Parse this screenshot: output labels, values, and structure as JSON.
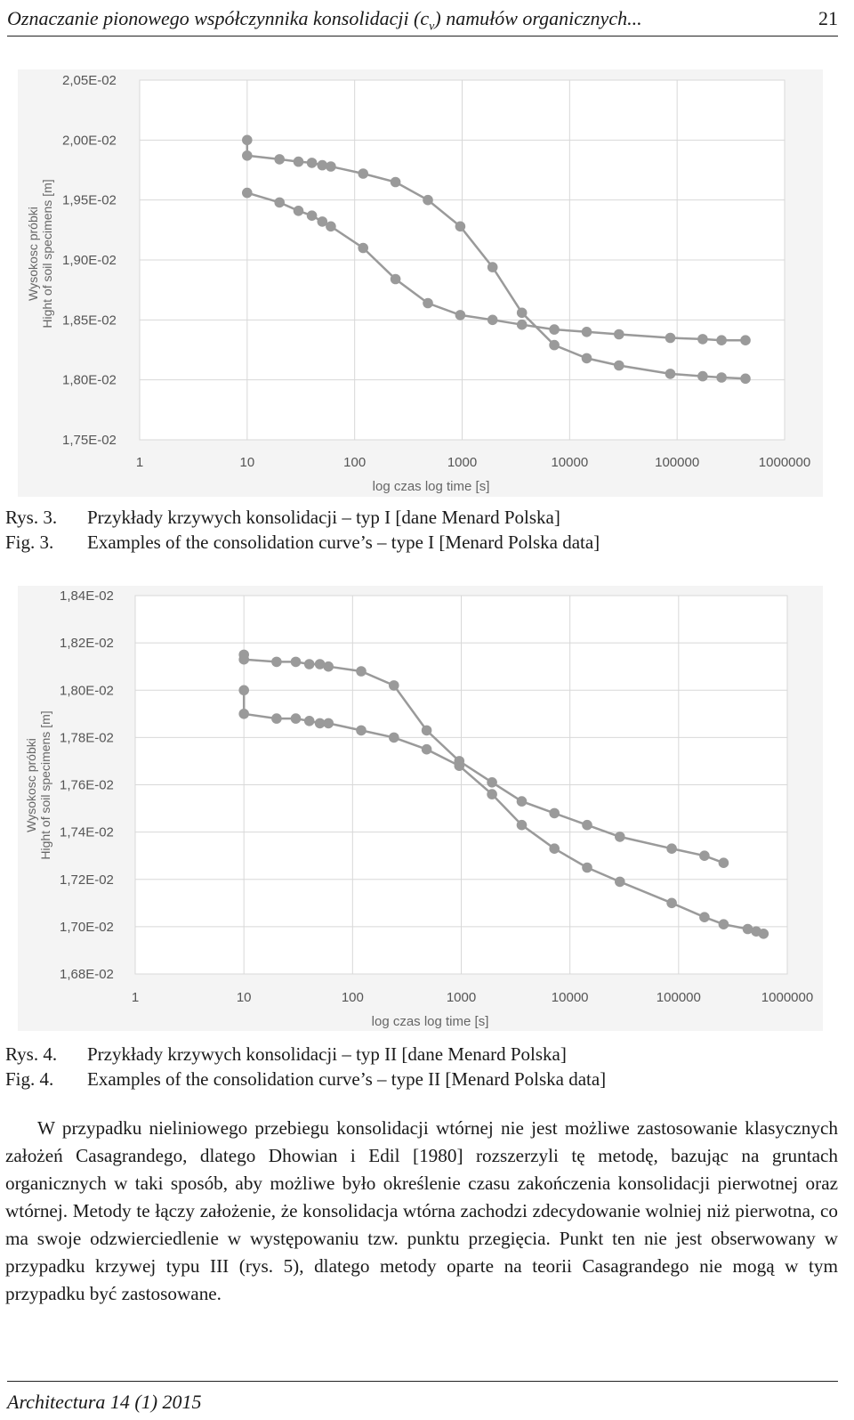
{
  "header": {
    "title": "Oznaczanie pionowego współczynnika konsolidacji (c",
    "title_sub": "v",
    "title_end": ") namułów organicznych...",
    "page_number": "21"
  },
  "figures": [
    {
      "caption": {
        "rys_label": "Rys. 3.",
        "rys_text": "Przykłady krzywych konsolidacji – typ I [dane Menard Polska]",
        "fig_label": "Fig. 3.",
        "fig_text": "Examples of the consolidation curve’s – type I [Menard Polska data]"
      }
    },
    {
      "caption": {
        "rys_label": "Rys. 4.",
        "rys_text": "Przykłady krzywych konsolidacji – typ II [dane Menard Polska]",
        "fig_label": "Fig. 4.",
        "fig_text": "Examples of the consolidation curve’s – type II [Menard Polska data]"
      }
    }
  ],
  "chart_data": [
    {
      "type": "scatter",
      "xscale": "log",
      "xlim": [
        1,
        1000000
      ],
      "ylim": [
        0.0175,
        0.0205
      ],
      "x_ticks": [
        "1",
        "10",
        "100",
        "1000",
        "10000",
        "100000",
        "1000000"
      ],
      "y_ticks": [
        "1,75E-02",
        "1,80E-02",
        "1,85E-02",
        "1,90E-02",
        "1,95E-02",
        "2,00E-02",
        "2,05E-02"
      ],
      "xlabel": "log czas log time [s]",
      "ylabel_line1": "Wysokosc próbki",
      "ylabel_line2": "Hight of  soil specimens [m]",
      "grid": true,
      "marker_color": "#9a9a9a",
      "series": [
        {
          "x": [
            10,
            10,
            20,
            30,
            40,
            50,
            60,
            120,
            240,
            480,
            960,
            1920,
            3600,
            7200,
            14400,
            28800,
            86400,
            172800,
            259200,
            432000
          ],
          "y": [
            0.02,
            0.01987,
            0.01984,
            0.01982,
            0.01981,
            0.01979,
            0.01978,
            0.01972,
            0.01965,
            0.0195,
            0.01928,
            0.01894,
            0.01856,
            0.01829,
            0.01818,
            0.01812,
            0.01805,
            0.01803,
            0.01802,
            0.01801
          ]
        },
        {
          "x": [
            10,
            20,
            30,
            40,
            50,
            60,
            120,
            240,
            480,
            960,
            1920,
            3600,
            7200,
            14400,
            28800,
            86400,
            172800,
            259200,
            432000
          ],
          "y": [
            0.01956,
            0.01948,
            0.01941,
            0.01937,
            0.01932,
            0.01928,
            0.0191,
            0.01884,
            0.01864,
            0.01854,
            0.0185,
            0.01846,
            0.01842,
            0.0184,
            0.01838,
            0.01835,
            0.01834,
            0.01833,
            0.01833
          ]
        }
      ]
    },
    {
      "type": "scatter",
      "xscale": "log",
      "xlim": [
        1,
        1000000
      ],
      "ylim": [
        0.0168,
        0.0184
      ],
      "x_ticks": [
        "1",
        "10",
        "100",
        "1000",
        "10000",
        "100000",
        "1000000"
      ],
      "y_ticks": [
        "1,68E-02",
        "1,70E-02",
        "1,72E-02",
        "1,74E-02",
        "1,76E-02",
        "1,78E-02",
        "1,80E-02",
        "1,82E-02",
        "1,84E-02"
      ],
      "xlabel": "log czas log time [s]",
      "ylabel_line1": "Wysokosc próbki",
      "ylabel_line2": "Hight of  soil specimens [m]",
      "grid": true,
      "marker_color": "#9a9a9a",
      "series": [
        {
          "x": [
            10,
            10,
            20,
            30,
            40,
            50,
            60,
            120,
            240,
            480,
            960,
            1920,
            3600,
            7200,
            14400,
            28800,
            86400,
            172800,
            259200
          ],
          "y": [
            0.01815,
            0.01813,
            0.01812,
            0.01812,
            0.01811,
            0.01811,
            0.0181,
            0.01808,
            0.01802,
            0.01783,
            0.0177,
            0.01761,
            0.01753,
            0.01748,
            0.01743,
            0.01738,
            0.01733,
            0.0173,
            0.01727
          ]
        },
        {
          "x": [
            10,
            10,
            20,
            30,
            40,
            50,
            60,
            120,
            240,
            480,
            960,
            1920,
            3600,
            7200,
            14400,
            28800,
            86400,
            172800,
            259200,
            432000,
            518400,
            604800
          ],
          "y": [
            0.018,
            0.0179,
            0.01788,
            0.01788,
            0.01787,
            0.01786,
            0.01786,
            0.01783,
            0.0178,
            0.01775,
            0.01768,
            0.01756,
            0.01743,
            0.01733,
            0.01725,
            0.01719,
            0.0171,
            0.01704,
            0.01701,
            0.01699,
            0.01698,
            0.01697
          ]
        }
      ]
    }
  ],
  "body_text": "W przypadku nieliniowego przebiegu konsolidacji wtórnej nie jest możliwe zastosowanie klasycznych założeń Casagrandego, dlatego Dhowian i Edil [1980] rozszerzyli tę metodę, bazując na gruntach organicznych w taki sposób, aby możliwe było określenie czasu zakończenia konsolidacji pierwotnej oraz wtórnej. Metody te łączy założenie, że konsolidacja wtórna zachodzi zdecydowanie wolniej niż pierwotna, co ma swoje odzwierciedlenie w występowaniu tzw. punktu przegięcia. Punkt ten nie jest obserwowany w przypadku krzywej typu III (rys. 5), dlatego metody oparte na teorii Casagrandego nie mogą w tym przypadku być zastosowane.",
  "footer": {
    "journal": "Architectura 14 (1) 2015"
  }
}
